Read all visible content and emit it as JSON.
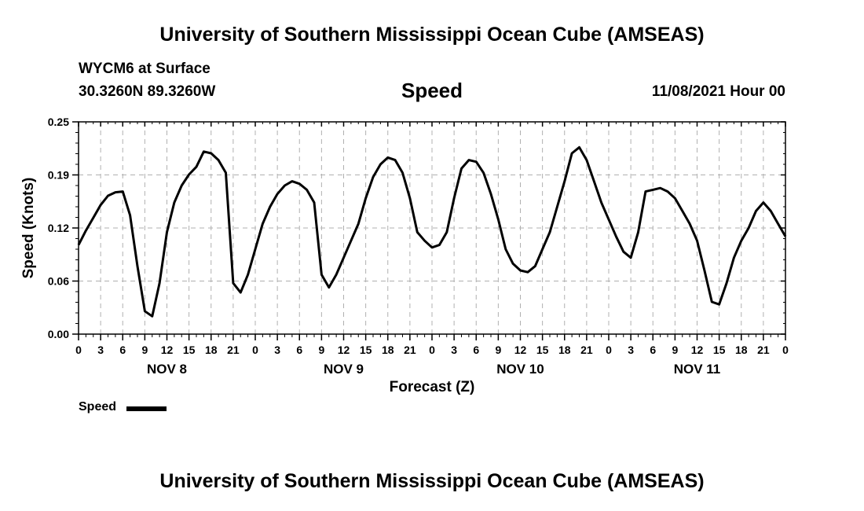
{
  "header": {
    "title": "University of Southern Mississippi Ocean Cube (AMSEAS)",
    "station": "WYCM6 at Surface",
    "coords": "30.3260N  89.3260W",
    "subtitle": "Speed",
    "datetime": "11/08/2021 Hour 00"
  },
  "footer": {
    "title": "University of Southern Mississippi Ocean Cube (AMSEAS)"
  },
  "legend": {
    "label": "Speed"
  },
  "chart_data": {
    "type": "line",
    "title": "Speed",
    "xlabel": "Forecast (Z)",
    "ylabel": "Speed (Knots)",
    "xlim": [
      0,
      96
    ],
    "ylim": [
      0,
      0.25
    ],
    "grid": true,
    "x_tick_step": 3,
    "x_tick_labels": [
      "0",
      "3",
      "6",
      "9",
      "12",
      "15",
      "18",
      "21",
      "0",
      "3",
      "6",
      "9",
      "12",
      "15",
      "18",
      "21",
      "0",
      "3",
      "6",
      "9",
      "12",
      "15",
      "18",
      "21",
      "0",
      "3",
      "6",
      "9",
      "12",
      "15",
      "18",
      "21",
      "0"
    ],
    "y_tick_labels": [
      "0.00",
      "0.06",
      "0.12",
      "0.19",
      "0.25"
    ],
    "y_tick_values": [
      0,
      0.0625,
      0.125,
      0.1875,
      0.25
    ],
    "day_labels": [
      {
        "label": "NOV 8",
        "x": 12
      },
      {
        "label": "NOV 9",
        "x": 36
      },
      {
        "label": "NOV 10",
        "x": 60
      },
      {
        "label": "NOV 11",
        "x": 84
      }
    ],
    "color": "#000000",
    "series": [
      {
        "name": "Speed",
        "x": [
          0,
          1,
          2,
          3,
          4,
          5,
          6,
          7,
          8,
          9,
          10,
          11,
          12,
          13,
          14,
          15,
          16,
          17,
          18,
          19,
          20,
          21,
          22,
          23,
          24,
          25,
          26,
          27,
          28,
          29,
          30,
          31,
          32,
          33,
          34,
          35,
          36,
          37,
          38,
          39,
          40,
          41,
          42,
          43,
          44,
          45,
          46,
          47,
          48,
          49,
          50,
          51,
          52,
          53,
          54,
          55,
          56,
          57,
          58,
          59,
          60,
          61,
          62,
          63,
          64,
          65,
          66,
          67,
          68,
          69,
          70,
          71,
          72,
          73,
          74,
          75,
          76,
          77,
          78,
          79,
          80,
          81,
          82,
          83,
          84,
          85,
          86,
          87,
          88,
          89,
          90,
          91,
          92,
          93,
          94,
          95,
          96
        ],
        "values": [
          0.105,
          0.122,
          0.137,
          0.152,
          0.163,
          0.167,
          0.168,
          0.14,
          0.08,
          0.027,
          0.021,
          0.06,
          0.12,
          0.155,
          0.175,
          0.188,
          0.197,
          0.215,
          0.213,
          0.205,
          0.19,
          0.06,
          0.049,
          0.07,
          0.1,
          0.13,
          0.15,
          0.165,
          0.175,
          0.18,
          0.177,
          0.17,
          0.155,
          0.07,
          0.055,
          0.07,
          0.09,
          0.11,
          0.13,
          0.16,
          0.185,
          0.2,
          0.208,
          0.205,
          0.19,
          0.16,
          0.12,
          0.11,
          0.102,
          0.105,
          0.12,
          0.16,
          0.195,
          0.205,
          0.203,
          0.19,
          0.165,
          0.135,
          0.1,
          0.083,
          0.075,
          0.073,
          0.08,
          0.1,
          0.12,
          0.15,
          0.18,
          0.213,
          0.22,
          0.205,
          0.18,
          0.155,
          0.135,
          0.115,
          0.097,
          0.09,
          0.12,
          0.168,
          0.17,
          0.172,
          0.168,
          0.16,
          0.145,
          0.13,
          0.11,
          0.075,
          0.038,
          0.035,
          0.06,
          0.09,
          0.11,
          0.125,
          0.145,
          0.155,
          0.145,
          0.13,
          0.115
        ]
      }
    ]
  }
}
